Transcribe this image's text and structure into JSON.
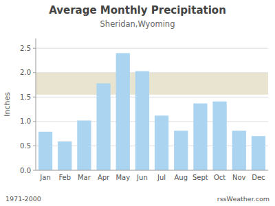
{
  "chart_data": {
    "type": "bar",
    "title": "Average Monthly Precipitation",
    "subtitle": "Sheridan,Wyoming",
    "y_label": "Inches",
    "categories": [
      "Jan",
      "Feb",
      "Mar",
      "Apr",
      "May",
      "Jun",
      "Jul",
      "Aug",
      "Sept",
      "Oct",
      "Nov",
      "Dec"
    ],
    "values": [
      0.79,
      0.59,
      1.02,
      1.78,
      2.4,
      2.03,
      1.12,
      0.81,
      1.37,
      1.41,
      0.81,
      0.7
    ],
    "color": "#aad4f0",
    "ylim": [
      0,
      2.7
    ],
    "yticks": [
      {
        "value": 0.0,
        "label": "0.0"
      },
      0.5,
      {
        "value": 1.0,
        "label": "1.0"
      },
      1.5,
      {
        "value": 2.0,
        "label": "2.0"
      },
      2.5
    ],
    "grid": true,
    "band": {
      "ymin": 1.55,
      "ymax": 2.0,
      "color": "#e8e4d0"
    },
    "annotations": [
      "1971-2000",
      "rssWeather.com"
    ]
  }
}
